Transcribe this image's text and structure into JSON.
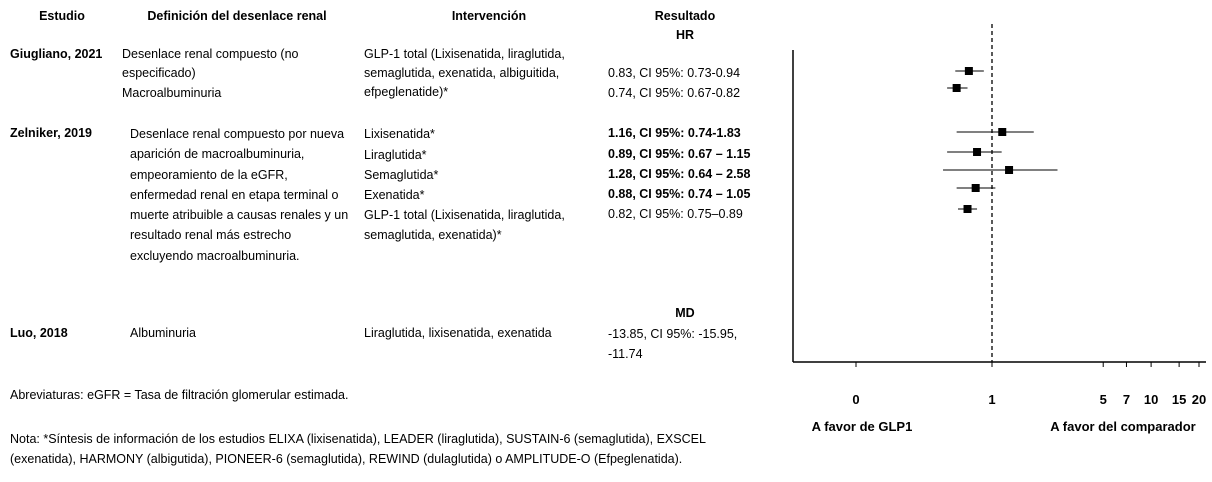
{
  "table": {
    "headers": {
      "study": "Estudio",
      "definition": "Definición del desenlace renal",
      "intervention": "Intervención",
      "result": "Resultado"
    },
    "hr_label": "HR",
    "md_label": "MD",
    "rows": [
      {
        "study": "Giugliano, 2021",
        "definitions": [
          "Desenlace renal compuesto (no especificado)",
          "Macroalbuminuria"
        ],
        "interventions": [
          "GLP-1 total (Lixisenatida, liraglutida, semaglutida, exenatida, albiguitida, efpeglenatide)*"
        ],
        "results": [
          "0.83, CI 95%: 0.73-0.94",
          "0.74, CI 95%: 0.67-0.82"
        ]
      },
      {
        "study": "Zelniker, 2019",
        "definitions": [
          "Desenlace renal compuesto por nueva aparición de macroalbuminuria, empeoramiento de la eGFR, enfermedad renal en etapa terminal o muerte atribuible a causas renales y un resultado renal más estrecho excluyendo macroalbuminuria."
        ],
        "interventions": [
          "Lixisenatida*",
          "Liraglutida*",
          "Semaglutida*",
          "Exenatida*",
          "GLP-1 total (Lixisenatida, liraglutida, semaglutida, exenatida)*"
        ],
        "results": [
          "1.16, CI 95%: 0.74-1.83",
          "0.89, CI 95%: 0.67 – 1.15",
          "1.28, CI 95%: 0.64 – 2.58",
          "0.88, CI 95%: 0.74 – 1.05",
          "0.82, CI 95%: 0.75–0.89"
        ],
        "bold_results": [
          true,
          true,
          true,
          true,
          false
        ]
      },
      {
        "study": "Luo, 2018",
        "definitions": [
          "Albuminuria"
        ],
        "interventions": [
          "Liraglutida, lixisenatida, exenatida"
        ],
        "results": [
          "-13.85, CI 95%: -15.95, -11.74"
        ]
      }
    ]
  },
  "abbreviations": "Abreviaturas: eGFR = Tasa de filtración glomerular estimada.",
  "note": "Nota: *Síntesis de información de los estudios ELIXA (lixisenatida), LEADER (liraglutida), SUSTAIN-6 (semaglutida), EXSCEL (exenatida), HARMONY (albigutida), PIONEER-6 (semaglutida), REWIND (dulaglutida) o AMPLITUDE-O (Efpeglenatida).",
  "forest": {
    "xticks": [
      0,
      1,
      5,
      7,
      10,
      15,
      20
    ],
    "reference": 1,
    "left_label": "A favor de GLP1",
    "right_label": "A favor del comparador",
    "points": [
      {
        "value": 0.83,
        "ci_low": 0.73,
        "ci_high": 0.94
      },
      {
        "value": 0.74,
        "ci_low": 0.67,
        "ci_high": 0.82
      },
      {
        "value": 1.16,
        "ci_low": 0.74,
        "ci_high": 1.83
      },
      {
        "value": 0.89,
        "ci_low": 0.67,
        "ci_high": 1.15
      },
      {
        "value": 1.28,
        "ci_low": 0.64,
        "ci_high": 2.58
      },
      {
        "value": 0.88,
        "ci_low": 0.74,
        "ci_high": 1.05
      },
      {
        "value": 0.82,
        "ci_low": 0.75,
        "ci_high": 0.89
      }
    ]
  }
}
